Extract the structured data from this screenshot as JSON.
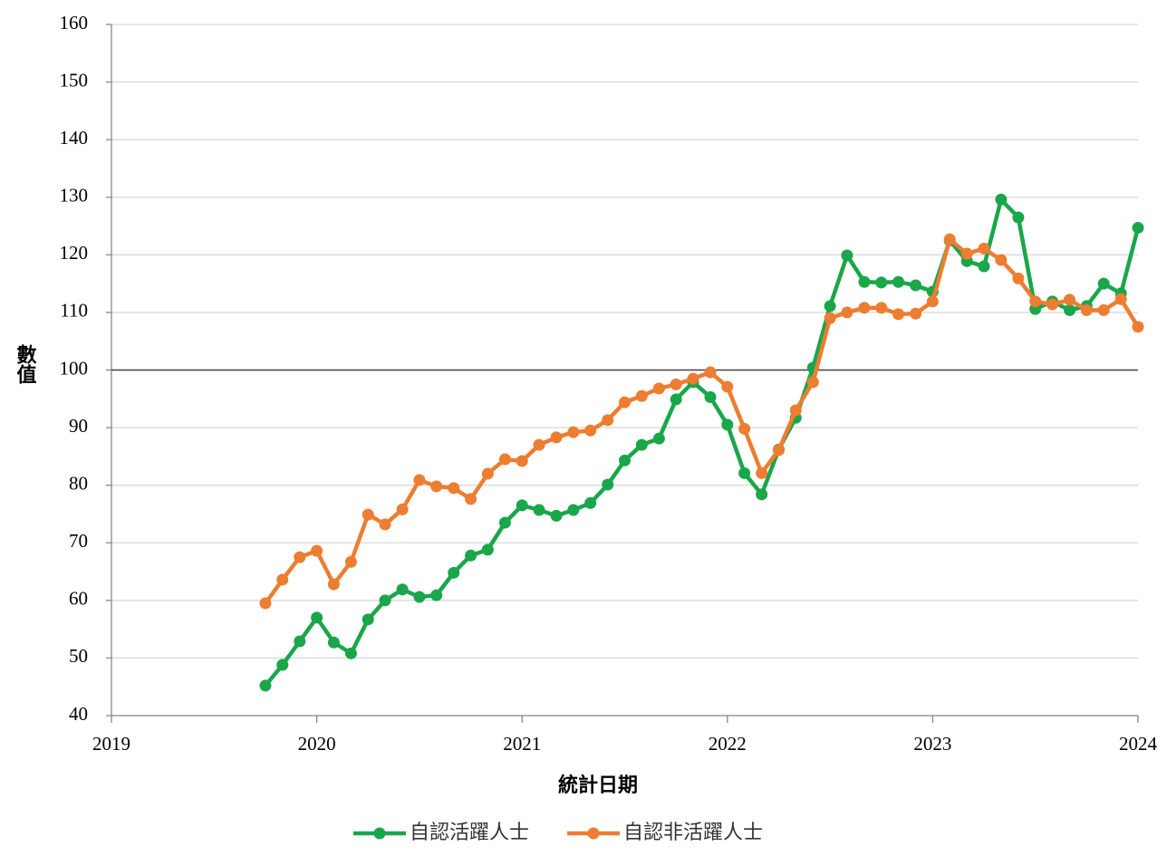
{
  "chart_data": {
    "type": "line",
    "x_label": "統計日期",
    "y_label": "數值",
    "x": [
      2019.75,
      2019.833,
      2019.917,
      2020.0,
      2020.083,
      2020.167,
      2020.25,
      2020.333,
      2020.417,
      2020.5,
      2020.583,
      2020.667,
      2020.75,
      2020.833,
      2020.917,
      2021.0,
      2021.083,
      2021.167,
      2021.25,
      2021.333,
      2021.417,
      2021.5,
      2021.583,
      2021.667,
      2021.75,
      2021.833,
      2021.917,
      2022.0,
      2022.083,
      2022.167,
      2022.25,
      2022.333,
      2022.417,
      2022.5,
      2022.583,
      2022.667,
      2022.75,
      2022.833,
      2022.917,
      2023.0,
      2023.083,
      2023.167,
      2023.25,
      2023.333,
      2023.417,
      2023.5,
      2023.583,
      2023.667,
      2023.75,
      2023.833,
      2023.917,
      2024.0
    ],
    "series": [
      {
        "name": "自認活躍人士",
        "color": "#1aa64a",
        "values": [
          45.2,
          48.8,
          52.9,
          57.0,
          52.7,
          50.8,
          56.7,
          60.0,
          61.9,
          60.6,
          60.9,
          64.8,
          67.8,
          68.8,
          73.5,
          76.5,
          75.7,
          74.7,
          75.7,
          76.9,
          80.1,
          84.3,
          87.0,
          88.1,
          94.9,
          97.9,
          95.3,
          90.5,
          82.1,
          78.4,
          86.2,
          91.7,
          100.4,
          111.1,
          119.9,
          115.3,
          115.2,
          115.3,
          114.7,
          113.6,
          122.5,
          118.9,
          118.0,
          129.6,
          126.5,
          110.6,
          111.9,
          110.4,
          111.1,
          115.0,
          113.3,
          124.7
        ]
      },
      {
        "name": "自認非活躍人士",
        "color": "#ed7d31",
        "values": [
          59.5,
          63.6,
          67.5,
          68.6,
          62.8,
          66.7,
          74.9,
          73.2,
          75.8,
          80.9,
          79.8,
          79.5,
          77.6,
          82.0,
          84.5,
          84.2,
          87.0,
          88.3,
          89.2,
          89.5,
          91.3,
          94.4,
          95.5,
          96.8,
          97.5,
          98.5,
          99.6,
          97.1,
          89.8,
          82.1,
          86.1,
          93.0,
          97.9,
          109.0,
          110.0,
          110.8,
          110.8,
          109.7,
          109.8,
          111.9,
          122.7,
          120.2,
          121.1,
          119.1,
          115.9,
          111.9,
          111.4,
          112.2,
          110.4,
          110.4,
          112.3,
          107.5
        ]
      }
    ],
    "xlim": [
      2019,
      2024
    ],
    "xticks": [
      2019,
      2020,
      2021,
      2022,
      2023,
      2024
    ],
    "ylim": [
      40,
      160
    ],
    "yticks": [
      40,
      50,
      60,
      70,
      80,
      90,
      100,
      110,
      120,
      130,
      140,
      150,
      160
    ],
    "reference_line": 100,
    "grid": true,
    "legend": "bottom"
  }
}
